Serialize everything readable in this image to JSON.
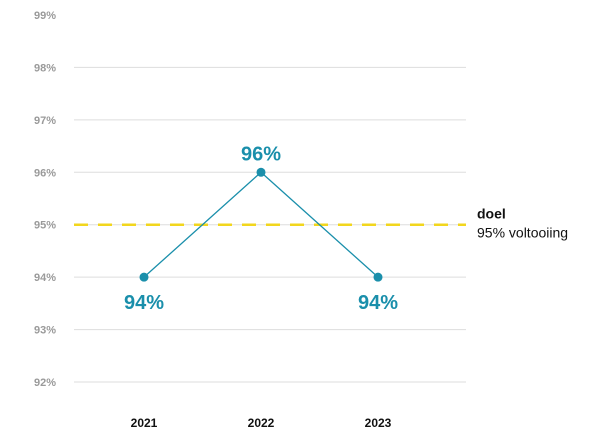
{
  "chart_data": {
    "type": "line",
    "categories": [
      "2021",
      "2022",
      "2023"
    ],
    "series": [
      {
        "values": [
          94,
          96,
          94
        ],
        "data_labels": [
          "94%",
          "96%",
          "94%"
        ]
      }
    ],
    "ylim": [
      92,
      99
    ],
    "y_ticks": [
      {
        "value": 92,
        "label": "92%"
      },
      {
        "value": 93,
        "label": "93%"
      },
      {
        "value": 94,
        "label": "94%"
      },
      {
        "value": 95,
        "label": "95%"
      },
      {
        "value": 96,
        "label": "96%"
      },
      {
        "value": 97,
        "label": "97%"
      },
      {
        "value": 98,
        "label": "98%"
      },
      {
        "value": 99,
        "label": "99%"
      }
    ],
    "grid": true,
    "target": {
      "value": 95,
      "title": "doel",
      "subtitle": "95% voltooiing"
    },
    "colors": {
      "series": "#1a8fab",
      "target": "#f2d61d",
      "grid": "#dddddd",
      "axis_text": "#9a9a9a"
    }
  }
}
